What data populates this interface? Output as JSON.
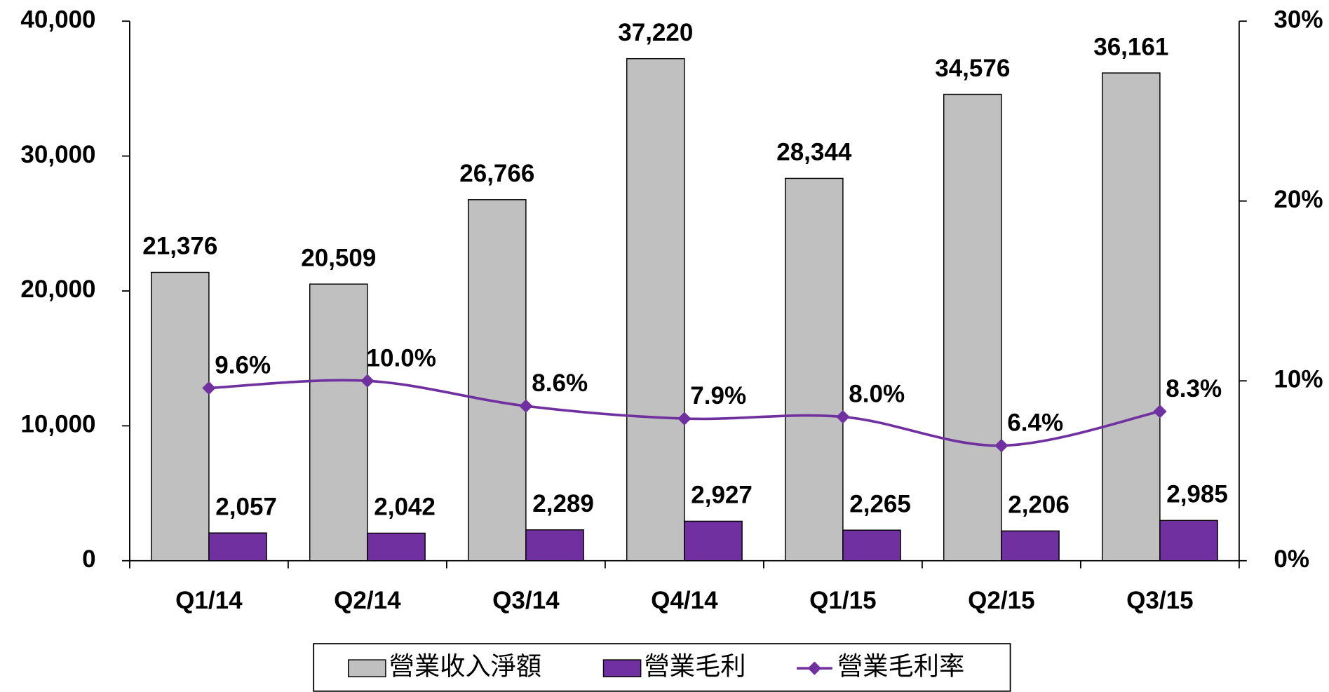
{
  "chart_data": {
    "type": "bar",
    "categories": [
      "Q1/14",
      "Q2/14",
      "Q3/14",
      "Q4/14",
      "Q1/15",
      "Q2/15",
      "Q3/15"
    ],
    "series": [
      {
        "name": "營業收入淨額",
        "color": "#c0c0c0",
        "values": [
          21376,
          20509,
          26766,
          37220,
          28344,
          34576,
          36161
        ],
        "value_labels": [
          "21,376",
          "20,509",
          "26,766",
          "37,220",
          "28,344",
          "34,576",
          "36,161"
        ]
      },
      {
        "name": "營業毛利",
        "color": "#7030a0",
        "values": [
          2057,
          2042,
          2289,
          2927,
          2265,
          2206,
          2985
        ],
        "value_labels": [
          "2,057",
          "2,042",
          "2,289",
          "2,927",
          "2,265",
          "2,206",
          "2,985"
        ]
      },
      {
        "name": "營業毛利率",
        "color": "#7030a0",
        "type": "line",
        "axis": "y2",
        "values": [
          9.6,
          10.0,
          8.6,
          7.9,
          8.0,
          6.4,
          8.3
        ],
        "value_labels": [
          "9.6%",
          "10.0%",
          "8.6%",
          "7.9%",
          "8.0%",
          "6.4%",
          "8.3%"
        ]
      }
    ],
    "ylim": [
      0,
      40000
    ],
    "yticks": [
      0,
      {
        "value": 10000,
        "label": "10,000"
      },
      {
        "value": 20000,
        "label": "20,000"
      },
      {
        "value": 30000,
        "label": "30,000"
      },
      {
        "value": 40000,
        "label": "40,000"
      }
    ],
    "y2lim": [
      0,
      30
    ],
    "y2ticks": [
      {
        "value": 0,
        "label": "0%"
      },
      {
        "value": 10,
        "label": "10%"
      },
      {
        "value": 20,
        "label": "20%"
      },
      {
        "value": 30,
        "label": "30%"
      }
    ],
    "legend": "bottom"
  }
}
